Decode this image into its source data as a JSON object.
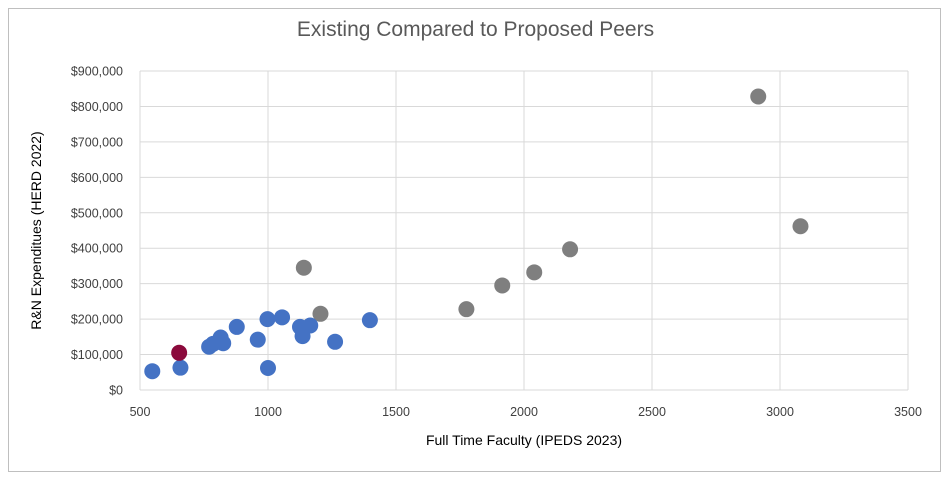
{
  "chart_data": {
    "type": "scatter",
    "title": "Existing Compared to Proposed Peers",
    "xlabel": "Full Time Faculty (IPEDS 2023)",
    "ylabel": "R&N Expenditues (HERD 2022)",
    "xlim": [
      500,
      3500
    ],
    "ylim": [
      0,
      900000
    ],
    "x_ticks": [
      500,
      1000,
      1500,
      2000,
      2500,
      3000,
      3500
    ],
    "y_ticks": [
      0,
      100000,
      200000,
      300000,
      400000,
      500000,
      600000,
      700000,
      800000,
      900000
    ],
    "x_tick_labels": [
      "500",
      "1000",
      "1500",
      "2000",
      "2500",
      "3000",
      "3500"
    ],
    "y_tick_labels": [
      "$0",
      "$100,000",
      "$200,000",
      "$300,000",
      "$400,000",
      "$500,000",
      "$600,000",
      "$700,000",
      "$800,000",
      "$900,000"
    ],
    "grid": "vertical and horizontal gridlines",
    "legend": "none",
    "series": [
      {
        "color": "#7f7f7f",
        "points": [
          [
            1140,
            345000
          ],
          [
            1205,
            215000
          ],
          [
            1775,
            228000
          ],
          [
            1915,
            295000
          ],
          [
            2040,
            332000
          ],
          [
            2180,
            397000
          ],
          [
            2915,
            828000
          ],
          [
            3080,
            462000
          ]
        ]
      },
      {
        "color": "#4472c4",
        "points": [
          [
            548,
            53000
          ],
          [
            658,
            63000
          ],
          [
            770,
            122000
          ],
          [
            785,
            130000
          ],
          [
            815,
            148000
          ],
          [
            825,
            132000
          ],
          [
            878,
            178000
          ],
          [
            960,
            142000
          ],
          [
            998,
            200000
          ],
          [
            1000,
            62000
          ],
          [
            1055,
            205000
          ],
          [
            1125,
            178000
          ],
          [
            1135,
            152000
          ],
          [
            1165,
            182000
          ],
          [
            1262,
            136000
          ],
          [
            1398,
            197000
          ]
        ]
      },
      {
        "color": "#8b0a3c",
        "points": [
          [
            653,
            105000
          ]
        ]
      }
    ]
  }
}
